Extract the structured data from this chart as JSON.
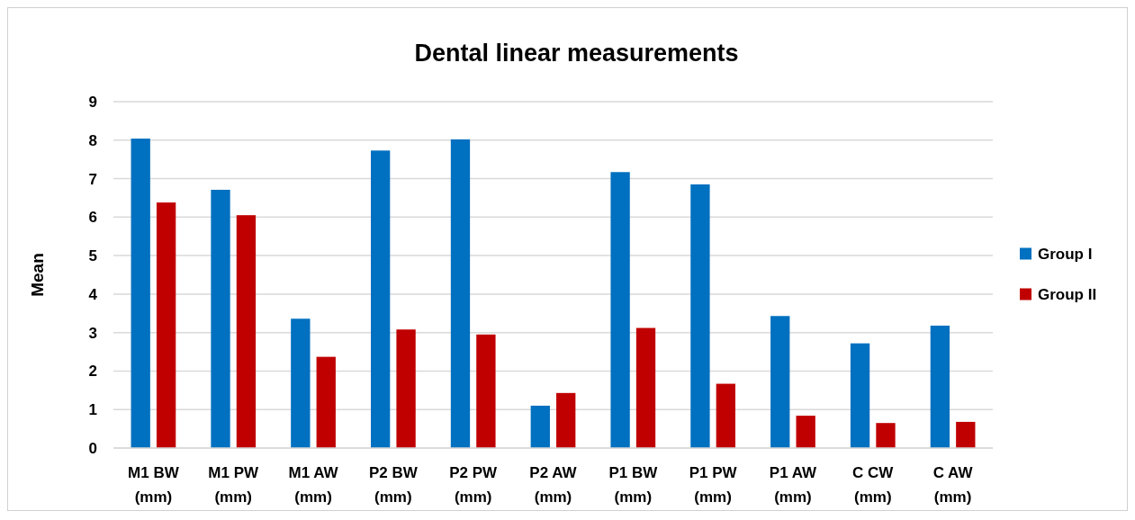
{
  "chart_data": {
    "type": "bar",
    "title": "Dental linear measurements",
    "ylabel": "Mean",
    "categories": [
      "M1 BW (mm)",
      "M1 PW (mm)",
      "M1 AW (mm)",
      "P2 BW (mm)",
      "P2 PW (mm)",
      "P2 AW (mm)",
      "P1 BW (mm)",
      "P1 PW (mm)",
      "P1 AW (mm)",
      "C CW (mm)",
      "C AW (mm)"
    ],
    "series": [
      {
        "name": "Group I",
        "color": "#0070c0",
        "values": [
          8.04,
          6.71,
          3.36,
          7.73,
          8.02,
          1.1,
          7.17,
          6.85,
          3.43,
          2.72,
          3.18
        ]
      },
      {
        "name": "Group II",
        "color": "#c00000",
        "values": [
          6.38,
          6.05,
          2.37,
          3.08,
          2.95,
          1.43,
          3.12,
          1.67,
          0.84,
          0.65,
          0.68
        ]
      }
    ],
    "ylim": [
      0,
      9
    ],
    "yticks": [
      0,
      1,
      2,
      3,
      4,
      5,
      6,
      7,
      8,
      9
    ],
    "grid": "y",
    "legend": "right"
  }
}
